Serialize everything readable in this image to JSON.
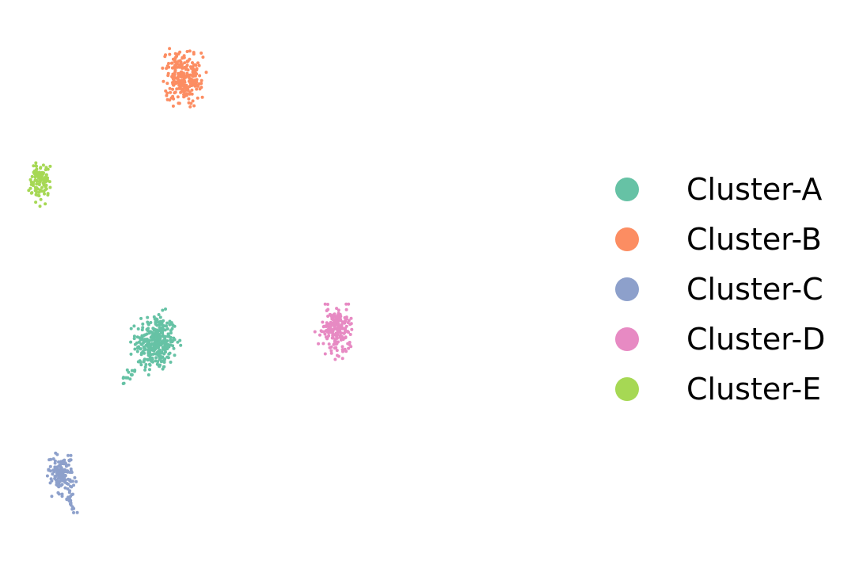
{
  "chart_data": {
    "type": "scatter",
    "title": "",
    "xlabel": "",
    "ylabel": "",
    "axes_visible": false,
    "grid": false,
    "legend_position": "right",
    "xlim": [
      0,
      100
    ],
    "ylim": [
      0,
      100
    ],
    "series": [
      {
        "name": "Cluster-A",
        "color": "#66c2a5",
        "center": [
          23.5,
          39.5
        ],
        "spread": [
          3.2,
          4.4
        ],
        "count": 330,
        "tail": {
          "to": [
            17.5,
            32.0
          ],
          "count": 22
        }
      },
      {
        "name": "Cluster-B",
        "color": "#fc8d62",
        "center": [
          28.5,
          90.0
        ],
        "spread": [
          2.9,
          4.1
        ],
        "count": 260
      },
      {
        "name": "Cluster-C",
        "color": "#8da0cb",
        "center": [
          5.5,
          14.5
        ],
        "spread": [
          2.0,
          3.3
        ],
        "count": 140,
        "tail": {
          "to": [
            8.3,
            6.6
          ],
          "count": 16
        }
      },
      {
        "name": "Cluster-D",
        "color": "#e78ac3",
        "center": [
          57.5,
          42.0
        ],
        "spread": [
          2.6,
          3.6
        ],
        "count": 200
      },
      {
        "name": "Cluster-E",
        "color": "#a6d854",
        "center": [
          1.5,
          70.5
        ],
        "spread": [
          1.6,
          3.2
        ],
        "count": 115
      }
    ]
  }
}
